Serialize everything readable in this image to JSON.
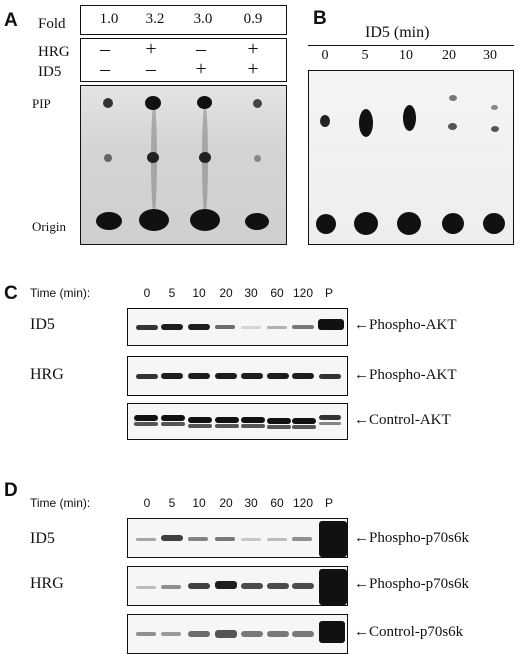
{
  "panelA": {
    "letter": "A",
    "fold_label": "Fold",
    "fold_values": [
      "1.0",
      "3.2",
      "3.0",
      "0.9"
    ],
    "rows": [
      {
        "label": "HRG",
        "signs": [
          "–",
          "+",
          "–",
          "+"
        ]
      },
      {
        "label": "ID5",
        "signs": [
          "–",
          "–",
          "+",
          "+"
        ]
      }
    ],
    "spot_labels": {
      "top": "PIP",
      "bottom": "Origin"
    }
  },
  "panelB": {
    "letter": "B",
    "title": "ID5 (min)",
    "times": [
      "0",
      "5",
      "10",
      "20",
      "30"
    ]
  },
  "panelC": {
    "letter": "C",
    "time_label": "Time (min):",
    "times": [
      "0",
      "5",
      "10",
      "20",
      "30",
      "60",
      "120",
      "P"
    ],
    "blots": [
      {
        "row_label": "ID5",
        "arrow_label": "←Phospho-AKT"
      },
      {
        "row_label": "HRG",
        "arrow_label": "←Phospho-AKT"
      },
      {
        "row_label": "",
        "arrow_label": "←Control-AKT"
      }
    ]
  },
  "panelD": {
    "letter": "D",
    "time_label": "Time (min):",
    "times": [
      "0",
      "5",
      "10",
      "20",
      "30",
      "60",
      "120",
      "P"
    ],
    "blots": [
      {
        "row_label": "ID5",
        "arrow_label": "←Phospho-p70s6k"
      },
      {
        "row_label": "HRG",
        "arrow_label": "←Phospho-p70s6k"
      },
      {
        "row_label": "",
        "arrow_label": "←Control-p70s6k"
      }
    ]
  }
}
